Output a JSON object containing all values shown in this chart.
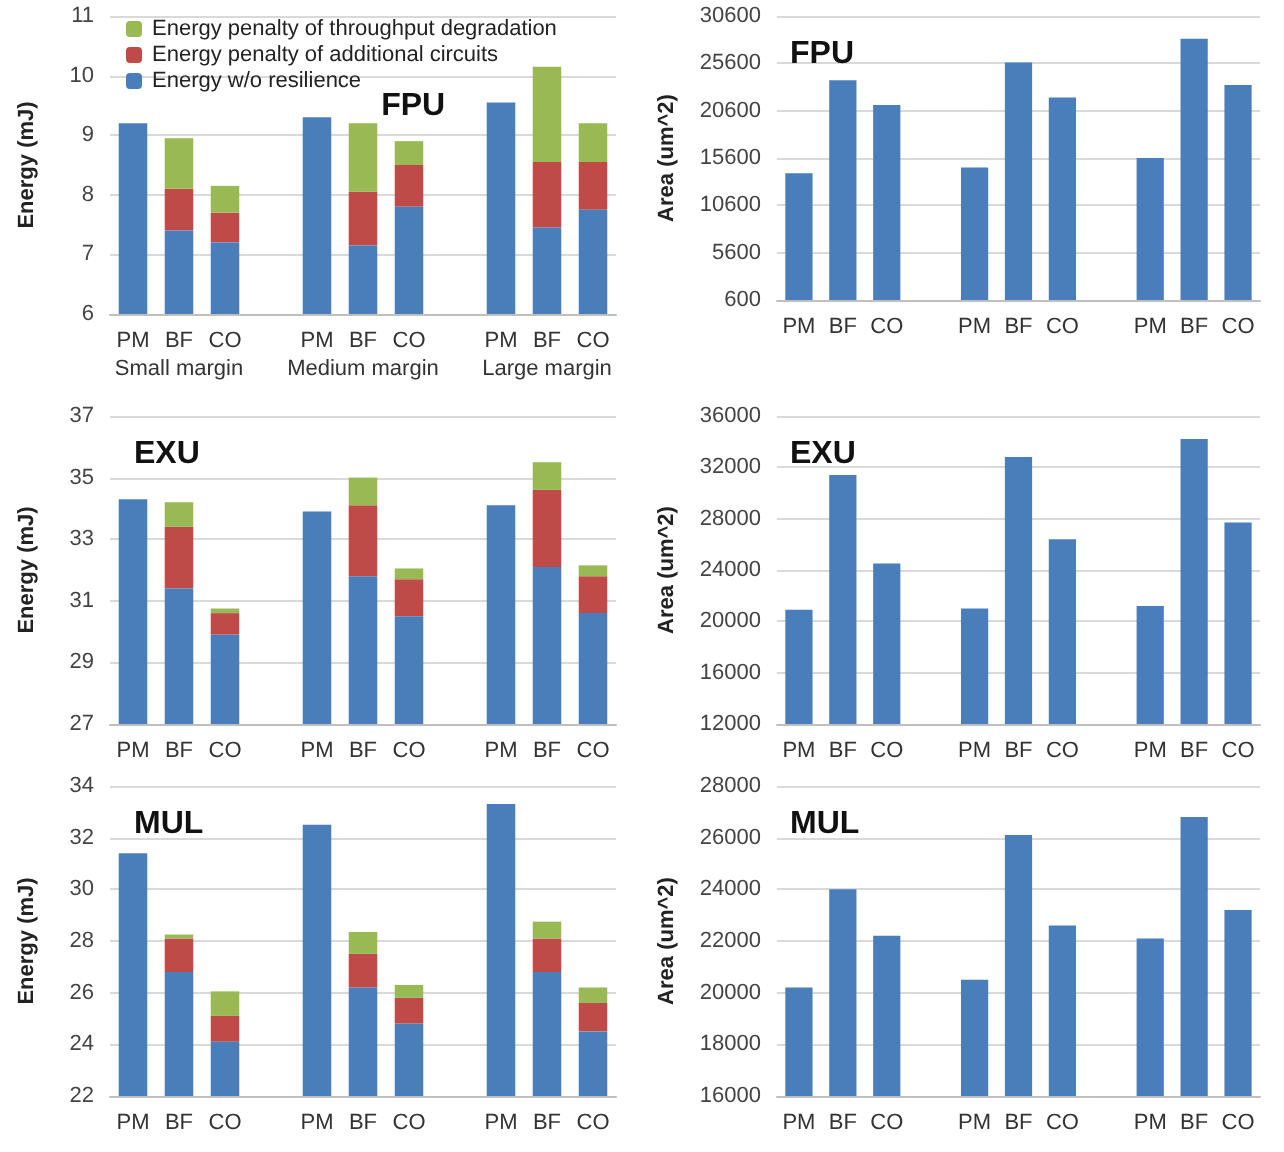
{
  "chart_data": [
    {
      "type": "bar",
      "title": "FPU",
      "ylabel": "Energy (mJ)",
      "stacked": true,
      "grid": "y",
      "legend": "top left",
      "categories": [
        "PM",
        "BF",
        "CO",
        null,
        "PM",
        "BF",
        "CO",
        null,
        "PM",
        "BF",
        "CO"
      ],
      "ylim": [
        6,
        11
      ],
      "yticks": [
        6,
        7,
        8,
        9,
        10,
        11
      ],
      "annotations": [
        "Small margin",
        "Medium margin",
        "Large margin"
      ],
      "series": [
        {
          "name": "Energy w/o resilience",
          "color": "#4a7ebb",
          "values": [
            9.2,
            7.4,
            7.2,
            null,
            9.3,
            7.15,
            7.8,
            null,
            9.55,
            7.45,
            7.75
          ]
        },
        {
          "name": "Energy penalty of additional circuits",
          "color": "#be4b48",
          "values": [
            null,
            0.7,
            0.5,
            null,
            null,
            0.9,
            0.7,
            null,
            null,
            1.1,
            0.8
          ],
          "base": [
            null,
            7.4,
            7.2,
            null,
            null,
            7.15,
            7.8,
            null,
            null,
            7.45,
            7.75
          ]
        },
        {
          "name": "Energy penalty of throughput degradation",
          "color": "#98b954",
          "values": [
            null,
            0.85,
            0.45,
            null,
            null,
            1.15,
            0.4,
            null,
            null,
            1.6,
            0.65
          ],
          "base": [
            null,
            8.1,
            7.7,
            null,
            null,
            8.05,
            8.5,
            null,
            null,
            8.55,
            8.55
          ]
        }
      ]
    },
    {
      "type": "bar",
      "title": "FPU",
      "ylabel": "Area (um^2)",
      "grid": "y",
      "categories": [
        "PM",
        "BF",
        "CO",
        null,
        "PM",
        "BF",
        "CO",
        null,
        "PM",
        "BF",
        "CO"
      ],
      "ylim": [
        600,
        30600
      ],
      "yticks": [
        600,
        5600,
        10600,
        15600,
        20600,
        25600,
        30600
      ],
      "series": [
        {
          "color": "#4a7ebb",
          "values": [
            14000,
            23800,
            21200,
            null,
            14600,
            25700,
            22000,
            null,
            15600,
            28200,
            23300
          ]
        }
      ]
    },
    {
      "type": "bar",
      "title": "EXU",
      "ylabel": "Energy (mJ)",
      "stacked": true,
      "grid": "y",
      "categories": [
        "PM",
        "BF",
        "CO",
        null,
        "PM",
        "BF",
        "CO",
        null,
        "PM",
        "BF",
        "CO"
      ],
      "ylim": [
        27,
        37
      ],
      "yticks": [
        27,
        29,
        31,
        33,
        35,
        37
      ],
      "series": [
        {
          "color": "#4a7ebb",
          "values": [
            34.3,
            31.4,
            29.9,
            null,
            33.9,
            31.8,
            30.5,
            null,
            34.1,
            32.1,
            30.6
          ]
        },
        {
          "color": "#be4b48",
          "values": [
            null,
            2.0,
            0.7,
            null,
            null,
            2.3,
            1.2,
            null,
            null,
            2.5,
            1.2
          ],
          "base": [
            null,
            31.4,
            29.9,
            null,
            null,
            31.8,
            30.5,
            null,
            null,
            32.1,
            30.6
          ]
        },
        {
          "color": "#98b954",
          "values": [
            null,
            0.8,
            0.15,
            null,
            null,
            0.9,
            0.35,
            null,
            null,
            0.9,
            0.35
          ],
          "base": [
            null,
            33.4,
            30.6,
            null,
            null,
            34.1,
            31.7,
            null,
            null,
            34.6,
            31.8
          ]
        }
      ]
    },
    {
      "type": "bar",
      "title": "EXU",
      "ylabel": "Area (um^2)",
      "grid": "y",
      "categories": [
        "PM",
        "BF",
        "CO",
        null,
        "PM",
        "BF",
        "CO",
        null,
        "PM",
        "BF",
        "CO"
      ],
      "ylim": [
        12000,
        36000
      ],
      "yticks": [
        12000,
        16000,
        20000,
        24000,
        28000,
        32000,
        36000
      ],
      "series": [
        {
          "color": "#4a7ebb",
          "values": [
            20900,
            31400,
            24500,
            null,
            21000,
            32800,
            26400,
            null,
            21200,
            34200,
            27700
          ]
        }
      ]
    },
    {
      "type": "bar",
      "title": "MUL",
      "ylabel": "Energy (mJ)",
      "stacked": true,
      "grid": "y",
      "categories": [
        "PM",
        "BF",
        "CO",
        null,
        "PM",
        "BF",
        "CO",
        null,
        "PM",
        "BF",
        "CO"
      ],
      "ylim": [
        22,
        34
      ],
      "yticks": [
        22,
        24,
        26,
        28,
        30,
        32,
        34
      ],
      "series": [
        {
          "color": "#4a7ebb",
          "values": [
            31.4,
            26.8,
            24.1,
            null,
            32.5,
            26.2,
            24.8,
            null,
            33.3,
            26.8,
            24.5
          ]
        },
        {
          "color": "#be4b48",
          "values": [
            null,
            1.3,
            1.0,
            null,
            null,
            1.3,
            1.0,
            null,
            null,
            1.3,
            1.1
          ],
          "base": [
            null,
            26.8,
            24.1,
            null,
            null,
            26.2,
            24.8,
            null,
            null,
            26.8,
            24.5
          ]
        },
        {
          "color": "#98b954",
          "values": [
            null,
            0.15,
            0.95,
            null,
            null,
            0.85,
            0.5,
            null,
            null,
            0.65,
            0.6
          ],
          "base": [
            null,
            28.1,
            25.1,
            null,
            null,
            27.5,
            25.8,
            null,
            null,
            28.1,
            25.6
          ]
        }
      ]
    },
    {
      "type": "bar",
      "title": "MUL",
      "ylabel": "Area (um^2)",
      "grid": "y",
      "categories": [
        "PM",
        "BF",
        "CO",
        null,
        "PM",
        "BF",
        "CO",
        null,
        "PM",
        "BF",
        "CO"
      ],
      "ylim": [
        16000,
        28000
      ],
      "yticks": [
        16000,
        18000,
        20000,
        22000,
        24000,
        26000,
        28000
      ],
      "series": [
        {
          "color": "#4a7ebb",
          "values": [
            20200,
            24000,
            22200,
            null,
            20500,
            26100,
            22600,
            null,
            22100,
            26800,
            23200
          ]
        }
      ]
    }
  ]
}
